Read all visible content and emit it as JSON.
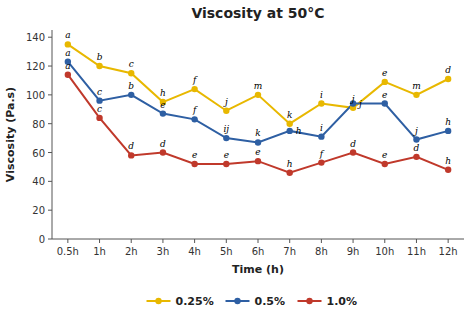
{
  "chart_data": {
    "type": "line",
    "title": "Viscosity at 50°C",
    "x_label": "Time (h)",
    "y_label": "Viscosity (Pa.s)",
    "categories": [
      "0.5h",
      "1h",
      "2h",
      "3h",
      "4h",
      "5h",
      "6h",
      "7h",
      "8h",
      "9h",
      "10h",
      "11h",
      "12h"
    ],
    "series": [
      {
        "name": "0.25%",
        "color": "#e8b800",
        "marker": "o",
        "values": [
          135,
          120,
          115,
          95,
          104,
          89,
          100,
          80,
          94,
          91,
          109,
          100,
          111
        ],
        "annotations": [
          "a",
          "b",
          "c",
          "h",
          "f",
          "j",
          "m",
          "k",
          "i",
          "j",
          "e",
          "m",
          "d"
        ]
      },
      {
        "name": "0.5%",
        "color": "#2e5fa3",
        "marker": "o",
        "values": [
          123,
          96,
          100,
          87,
          83,
          70,
          67,
          75,
          71,
          94,
          94,
          69,
          75
        ],
        "annotations": [
          "a",
          "c",
          "b",
          "e",
          "f",
          "ij",
          "k",
          "h",
          "i",
          "j",
          "e",
          "j",
          "h"
        ]
      },
      {
        "name": "1.0%",
        "color": "#c0392b",
        "marker": "o",
        "values": [
          114,
          84,
          58,
          60,
          52,
          52,
          54,
          46,
          53,
          60,
          52,
          57,
          48
        ],
        "annotations": [
          "a",
          "c",
          "d",
          "d",
          "e",
          "e",
          "e",
          "h",
          "f",
          "d",
          "e",
          "d",
          "h"
        ]
      }
    ],
    "ylim": [
      0,
      145
    ],
    "yticks": [
      0,
      20,
      40,
      60,
      80,
      100,
      120,
      140
    ],
    "grid": false,
    "legend": "bottom"
  }
}
